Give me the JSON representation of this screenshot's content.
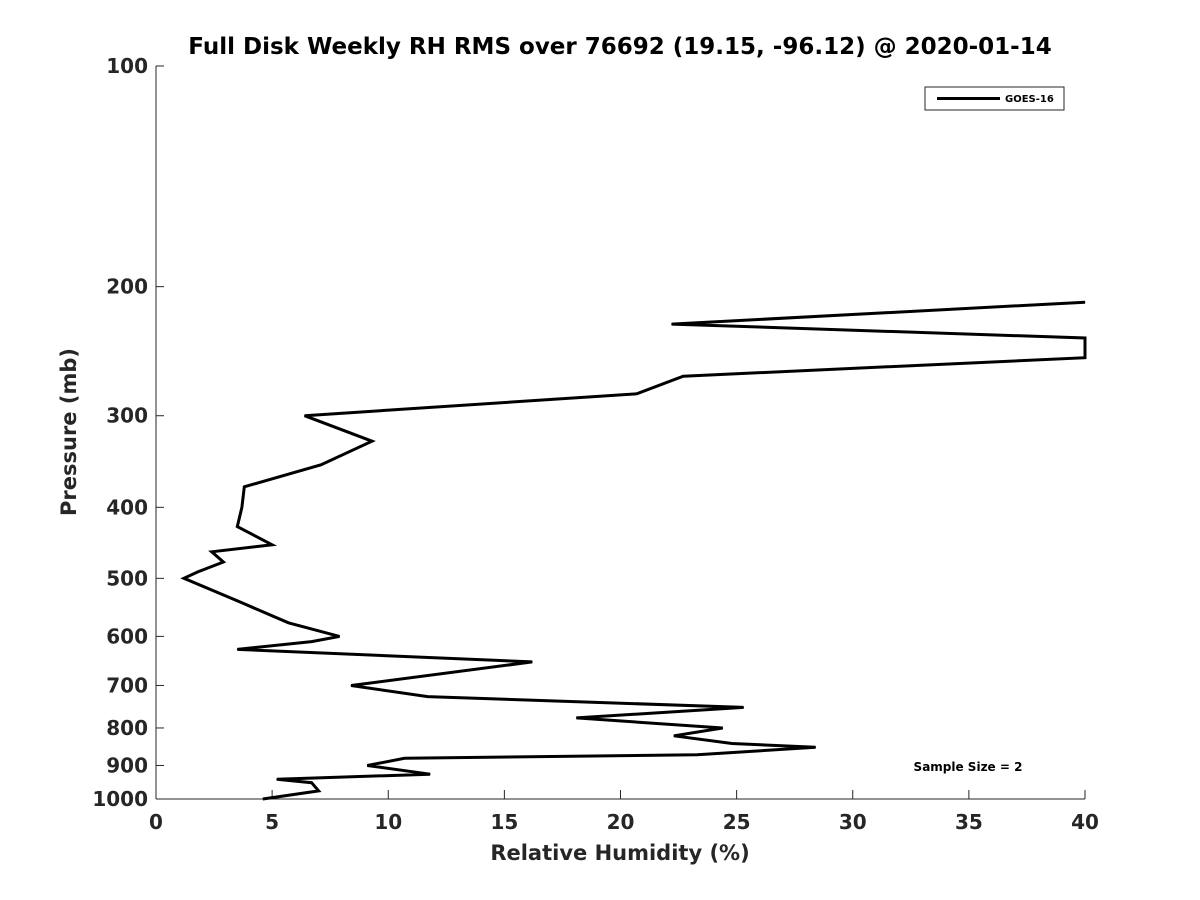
{
  "chart_data": {
    "type": "line",
    "title": "Full Disk Weekly RH RMS over 76692 (19.15, -96.12) @ 2020-01-14",
    "xlabel": "Relative Humidity (%)",
    "ylabel": "Pressure (mb)",
    "xlim": [
      0,
      40
    ],
    "ylim": [
      100,
      1000
    ],
    "yscale": "log",
    "yreversed": true,
    "grid": false,
    "legend_position": "top-right",
    "x_ticks": [
      0,
      5,
      10,
      15,
      20,
      25,
      30,
      35,
      40
    ],
    "x_tick_labels": [
      "0",
      "5",
      "10",
      "15",
      "20",
      "25",
      "30",
      "35",
      "40"
    ],
    "y_ticks": [
      100,
      200,
      300,
      400,
      500,
      600,
      700,
      800,
      900,
      1000
    ],
    "y_tick_labels": [
      "100",
      "200",
      "300",
      "400",
      "500",
      "600",
      "700",
      "800",
      "900",
      "1000"
    ],
    "series": [
      {
        "name": "GOES-16",
        "color": "#000000",
        "points": [
          [
            40.0,
            210
          ],
          [
            22.2,
            225
          ],
          [
            40.0,
            235
          ],
          [
            40.0,
            250
          ],
          [
            22.7,
            265
          ],
          [
            20.7,
            280
          ],
          [
            6.4,
            300
          ],
          [
            9.3,
            325
          ],
          [
            7.1,
            350
          ],
          [
            3.8,
            375
          ],
          [
            3.7,
            400
          ],
          [
            3.5,
            425
          ],
          [
            5.0,
            450
          ],
          [
            2.4,
            460
          ],
          [
            2.9,
            475
          ],
          [
            1.8,
            490
          ],
          [
            1.2,
            500
          ],
          [
            3.7,
            540
          ],
          [
            5.7,
            575
          ],
          [
            7.9,
            600
          ],
          [
            6.7,
            610
          ],
          [
            3.5,
            625
          ],
          [
            16.2,
            650
          ],
          [
            8.4,
            700
          ],
          [
            11.7,
            725
          ],
          [
            25.3,
            750
          ],
          [
            18.1,
            775
          ],
          [
            24.4,
            800
          ],
          [
            22.3,
            820
          ],
          [
            24.8,
            840
          ],
          [
            28.4,
            850
          ],
          [
            23.3,
            870
          ],
          [
            10.7,
            880
          ],
          [
            9.1,
            900
          ],
          [
            11.8,
            925
          ],
          [
            5.2,
            940
          ],
          [
            6.7,
            950
          ],
          [
            7.0,
            975
          ],
          [
            4.6,
            1000
          ]
        ]
      }
    ],
    "annotations": [
      "Sample Size = 2"
    ]
  }
}
